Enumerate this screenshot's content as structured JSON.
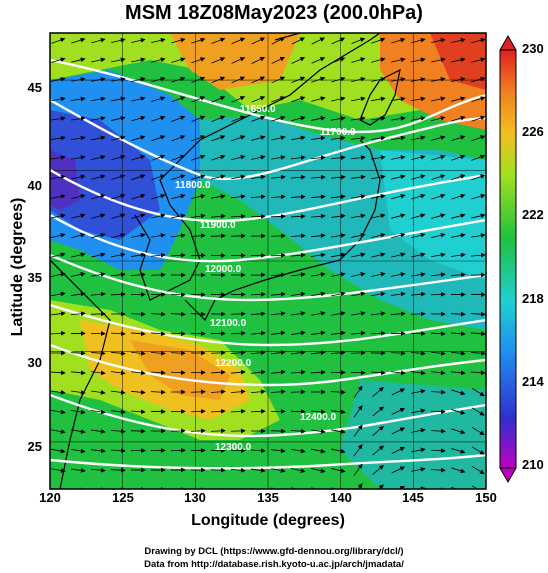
{
  "title": "MSM 18Z08May2023 (200.0hPa)",
  "x_axis": {
    "label": "Longitude (degrees)",
    "ticks": [
      "120",
      "125",
      "130",
      "135",
      "140",
      "145",
      "150"
    ],
    "range": [
      120,
      150
    ]
  },
  "y_axis": {
    "label": "Latitude  (degrees)",
    "ticks": [
      "25",
      "30",
      "35",
      "40",
      "45"
    ],
    "range": [
      22.4,
      47.6
    ]
  },
  "colorbar": {
    "ticks": [
      "230",
      "226",
      "222",
      "218",
      "214",
      "210"
    ],
    "range": [
      210,
      230
    ],
    "colors": [
      "#c000c0",
      "#3030d0",
      "#2090f0",
      "#20d0d0",
      "#20c040",
      "#a0e020",
      "#f0c020",
      "#f08020",
      "#e02020"
    ]
  },
  "contour_labels": [
    "11650.0",
    "11700.0",
    "11800.0",
    "11900.0",
    "12000.0",
    "12100.0",
    "12200.0",
    "12300.0",
    "12400.0"
  ],
  "credits": {
    "line1": "Drawing by DCL (https://www.gfd-dennou.org/library/dcl/)",
    "line2": "Data from http://database.rish.kyoto-u.ac.jp/arch/jmadata/"
  }
}
